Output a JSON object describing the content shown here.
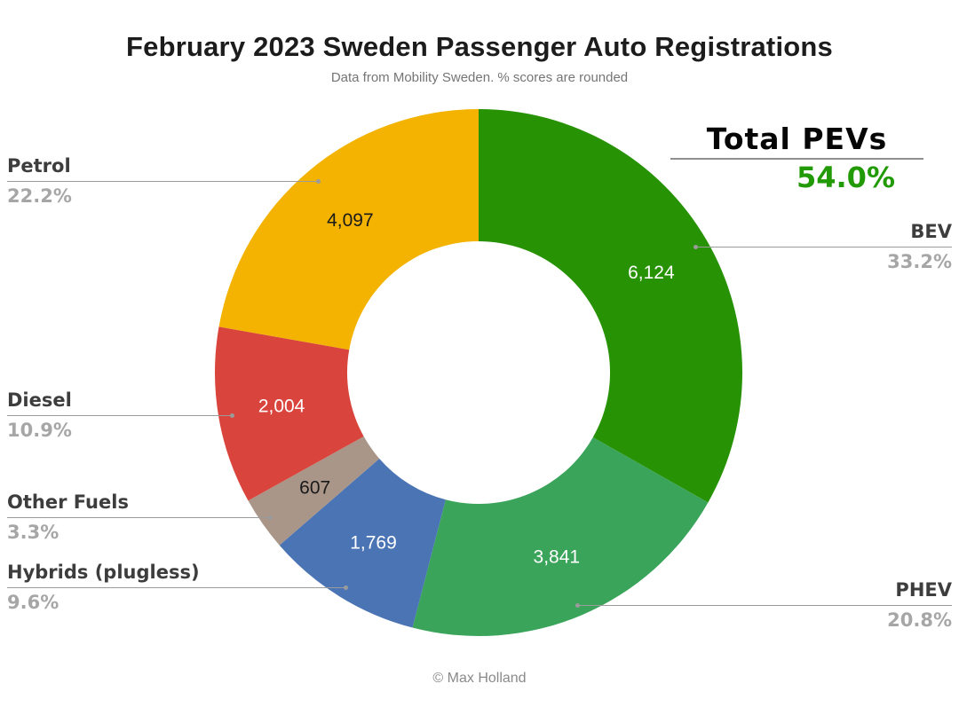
{
  "header": {
    "title": "February 2023 Sweden Passenger Auto Registrations",
    "subtitle": "Data from Mobility Sweden. % scores are rounded"
  },
  "total_pevs": {
    "label": "Total PEVs",
    "value": "54.0%",
    "value_color": "#229a06"
  },
  "footer": {
    "credit": "© Max Holland"
  },
  "chart_data": {
    "type": "pie",
    "donut": true,
    "title": "February 2023 Sweden Passenger Auto Registrations",
    "subtitle": "Data from Mobility Sweden. % scores are rounded",
    "start_angle_deg": 0,
    "direction": "clockwise",
    "legend_position": "outside-callouts",
    "total": 18442,
    "categories": [
      "BEV",
      "PHEV",
      "Hybrids (plugless)",
      "Other Fuels",
      "Diesel",
      "Petrol"
    ],
    "values": [
      6124,
      3841,
      1769,
      607,
      2004,
      4097
    ],
    "segments": [
      {
        "label": "BEV",
        "value": 6124,
        "value_label": "6,124",
        "percent": "33.2%",
        "color": "#279203",
        "text_color": "#ffffff"
      },
      {
        "label": "PHEV",
        "value": 3841,
        "value_label": "3,841",
        "percent": "20.8%",
        "color": "#3aa45b",
        "text_color": "#ffffff"
      },
      {
        "label": "Hybrids (plugless)",
        "value": 1769,
        "value_label": "1,769",
        "percent": "9.6%",
        "color": "#4b74b5",
        "text_color": "#ffffff"
      },
      {
        "label": "Other Fuels",
        "value": 607,
        "value_label": "607",
        "percent": "3.3%",
        "color": "#a99689",
        "text_color": "#1a1a1a"
      },
      {
        "label": "Diesel",
        "value": 2004,
        "value_label": "2,004",
        "percent": "10.9%",
        "color": "#d9453c",
        "text_color": "#ffffff"
      },
      {
        "label": "Petrol",
        "value": 4097,
        "value_label": "4,097",
        "percent": "22.2%",
        "color": "#f3b300",
        "text_color": "#1a1a1a"
      }
    ],
    "annotation": {
      "label": "Total PEVs",
      "value": "54.0%"
    }
  }
}
